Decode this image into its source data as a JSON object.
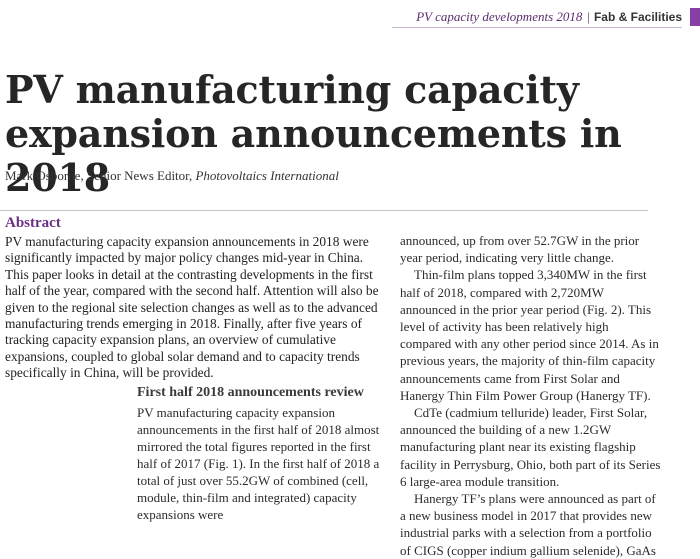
{
  "header": {
    "section": "PV capacity developments 2018",
    "separator": "|",
    "category": "Fab & Facilities"
  },
  "title": "PV manufacturing capacity expansion announcements in 2018",
  "byline": {
    "author": "Mark Osborne, Senior News Editor, ",
    "publication": "Photovoltaics International"
  },
  "abstract": {
    "heading": "Abstract",
    "text": "PV manufacturing capacity expansion announcements in 2018 were significantly impacted by major policy changes mid-year in China. This paper looks in detail at the contrasting developments in the first half of the year, compared with the second half. Attention will also be given to the regional site selection changes as well as to the advanced manufacturing trends emerging in 2018. Finally, after five years of tracking capacity expansion plans, an overview of cumulative expansions, coupled to global solar demand and to capacity trends specifically in China, will be provided."
  },
  "section1": {
    "heading": "First half 2018 announcements review",
    "text": "PV manufacturing capacity expansion announcements in the first half of 2018 almost mirrored the total figures reported in the first half of 2017 (Fig. 1). In the first half of 2018 a total of just over 55.2GW of combined (cell, module, thin-film and integrated) capacity expansions were"
  },
  "right_column": {
    "p1": "announced, up from over 52.7GW in the prior year period, indicating very little change.",
    "p2": "Thin-film plans topped 3,340MW in the first half of 2018, compared with 2,720MW announced in the prior year period (Fig. 2). This level of activity has been relatively high compared with any other period since 2014. As in previous years, the majority of thin-film capacity announcements came from First Solar and Hanergy Thin Film Power Group (Hanergy TF).",
    "p3": "CdTe (cadmium telluride) leader, First Solar, announced the building of a new 1.2GW manufacturing plant near its existing flagship facility in Perrysburg, Ohio, both part of its Series 6 large-area module transition.",
    "p4": "Hanergy TF’s plans were announced as part of a new business model in 2017 that provides new industrial parks with a selection from a portfolio of CIGS (copper indium gallium selenide), GaAs"
  }
}
